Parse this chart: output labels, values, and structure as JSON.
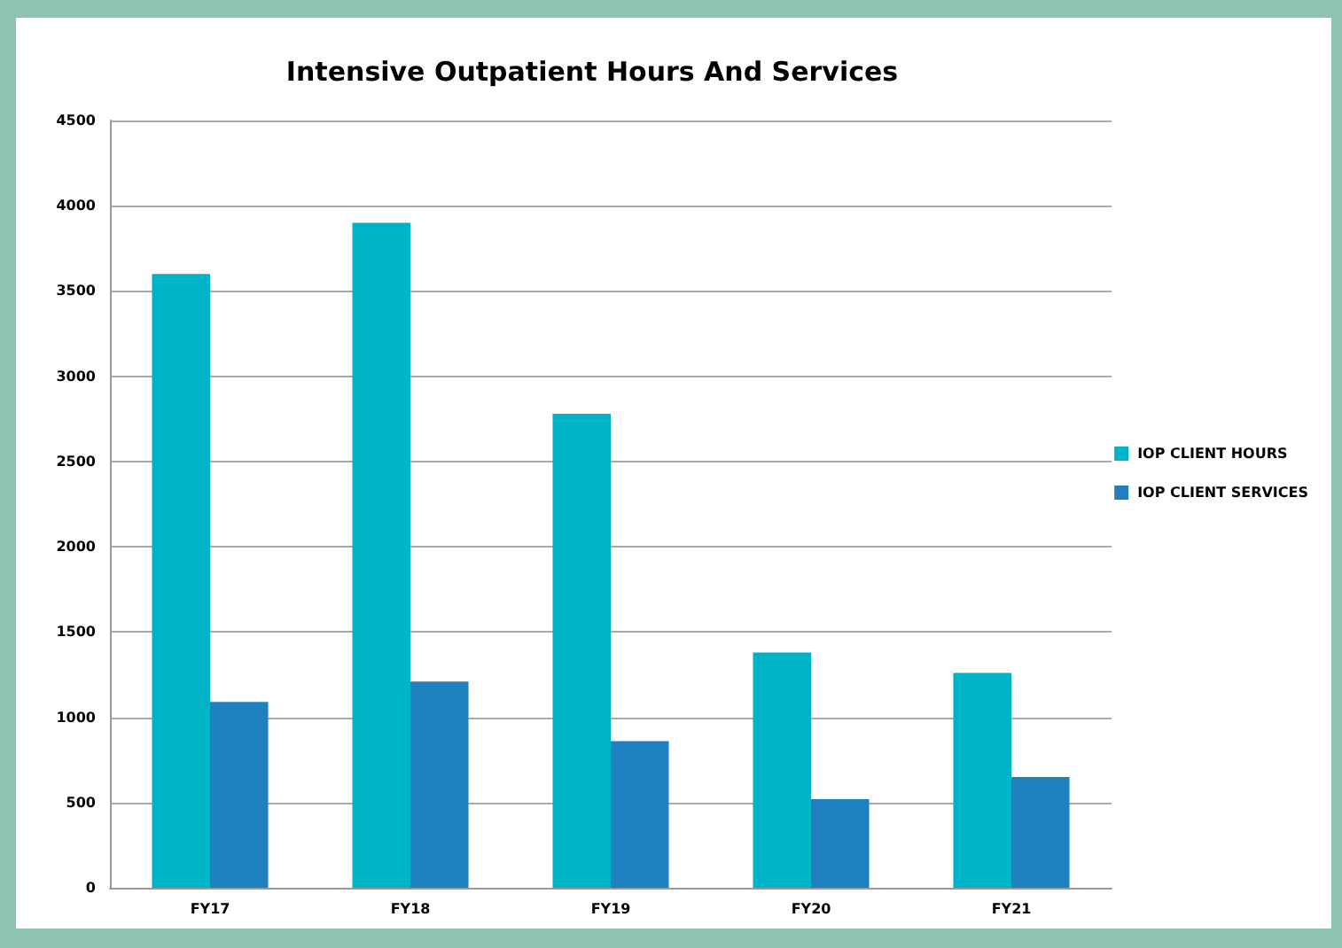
{
  "chart_data": {
    "type": "bar",
    "title": "Intensive Outpatient Hours And Services",
    "categories": [
      "FY17",
      "FY18",
      "FY19",
      "FY20",
      "FY21"
    ],
    "series": [
      {
        "name": "IOP CLIENT HOURS",
        "color": "#00b4c8",
        "values": [
          3600,
          3900,
          2780,
          1380,
          1260
        ]
      },
      {
        "name": "IOP CLIENT SERVICES",
        "color": "#1f80c0",
        "values": [
          1090,
          1210,
          860,
          520,
          650
        ]
      }
    ],
    "ylim": [
      0,
      4500
    ],
    "yticks": [
      0,
      500,
      1000,
      1500,
      2000,
      2500,
      3000,
      3500,
      4000,
      4500
    ],
    "grid": "y",
    "legend": "right"
  }
}
